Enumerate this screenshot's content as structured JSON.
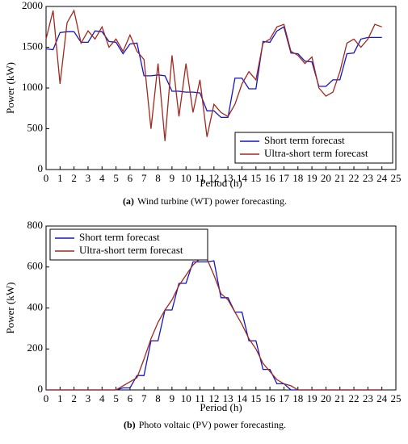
{
  "chart_data": [
    {
      "type": "line",
      "ylabel": "Power (kW)",
      "xlabel": "Period (h)",
      "caption_label": "(a)",
      "caption": "Wind turbine (WT) power forecasting.",
      "x": [
        0,
        0.5,
        1,
        1.5,
        2,
        2.5,
        3,
        3.5,
        4,
        4.5,
        5,
        5.5,
        6,
        6.5,
        7,
        7.5,
        8,
        8.5,
        9,
        9.5,
        10,
        10.5,
        11,
        11.5,
        12,
        12.5,
        13,
        13.5,
        14,
        14.5,
        15,
        15.5,
        16,
        16.5,
        17,
        17.5,
        18,
        18.5,
        19,
        19.5,
        20,
        20.5,
        21,
        21.5,
        22,
        22.5,
        23,
        23.5,
        24
      ],
      "series": [
        {
          "name": "Short term forecast",
          "color": "#1414c8",
          "values": [
            1480,
            1470,
            1680,
            1690,
            1690,
            1560,
            1560,
            1700,
            1690,
            1570,
            1560,
            1420,
            1540,
            1550,
            1150,
            1150,
            1160,
            1150,
            960,
            960,
            950,
            950,
            940,
            720,
            720,
            640,
            640,
            1120,
            1120,
            990,
            990,
            1570,
            1560,
            1700,
            1750,
            1430,
            1420,
            1330,
            1320,
            1020,
            1020,
            1100,
            1100,
            1420,
            1430,
            1600,
            1620,
            1620,
            1620
          ]
        },
        {
          "name": "Ultra-short term forecast",
          "color": "#a0281e",
          "values": [
            1600,
            1950,
            1050,
            1800,
            1950,
            1550,
            1700,
            1600,
            1750,
            1500,
            1600,
            1450,
            1650,
            1450,
            1350,
            500,
            1300,
            350,
            1400,
            650,
            1300,
            700,
            1100,
            400,
            800,
            700,
            650,
            800,
            1050,
            1200,
            1100,
            1550,
            1600,
            1750,
            1780,
            1450,
            1400,
            1300,
            1380,
            1000,
            900,
            950,
            1200,
            1550,
            1600,
            1500,
            1600,
            1780,
            1750
          ]
        }
      ],
      "xlim": [
        0,
        25
      ],
      "xticks": [
        0,
        1,
        2,
        3,
        4,
        5,
        6,
        7,
        8,
        9,
        10,
        11,
        12,
        13,
        14,
        15,
        16,
        17,
        18,
        19,
        20,
        21,
        22,
        23,
        24,
        25
      ],
      "ylim": [
        0,
        2000
      ],
      "yticks": [
        0,
        500,
        1000,
        1500,
        2000
      ],
      "legend": "lower right",
      "grid": false
    },
    {
      "type": "line",
      "ylabel": "Power (kW)",
      "xlabel": "Period (h)",
      "caption_label": "(b)",
      "caption": "Photo voltaic (PV) power forecasting.",
      "x": [
        0,
        0.5,
        1,
        1.5,
        2,
        2.5,
        3,
        3.5,
        4,
        4.5,
        5,
        5.5,
        6,
        6.5,
        7,
        7.5,
        8,
        8.5,
        9,
        9.5,
        10,
        10.5,
        11,
        11.5,
        12,
        12.5,
        13,
        13.5,
        14,
        14.5,
        15,
        15.5,
        16,
        16.5,
        17,
        17.5,
        18,
        18.5,
        19,
        19.5,
        20,
        20.5,
        21,
        21.5,
        22,
        22.5,
        23,
        23.5,
        24
      ],
      "series": [
        {
          "name": "Short term forecast",
          "color": "#1414c8",
          "values": [
            0,
            0,
            0,
            0,
            0,
            0,
            0,
            0,
            0,
            0,
            0,
            10,
            10,
            70,
            70,
            240,
            240,
            390,
            390,
            520,
            520,
            625,
            625,
            625,
            630,
            450,
            450,
            380,
            380,
            240,
            240,
            100,
            100,
            30,
            30,
            0,
            0,
            0,
            0,
            0,
            0,
            0,
            0,
            0,
            0,
            0,
            0,
            0,
            0
          ]
        },
        {
          "name": "Ultra-short term forecast",
          "color": "#a0281e",
          "values": [
            0,
            0,
            0,
            0,
            0,
            0,
            0,
            0,
            0,
            0,
            0,
            20,
            40,
            60,
            150,
            250,
            330,
            390,
            440,
            510,
            560,
            610,
            640,
            640,
            560,
            470,
            440,
            380,
            320,
            250,
            200,
            130,
            90,
            50,
            30,
            20,
            0,
            0,
            0,
            0,
            0,
            0,
            0,
            0,
            0,
            0,
            0,
            0,
            0
          ]
        }
      ],
      "xlim": [
        0,
        25
      ],
      "xticks": [
        0,
        1,
        2,
        3,
        4,
        5,
        6,
        7,
        8,
        9,
        10,
        11,
        12,
        13,
        14,
        15,
        16,
        17,
        18,
        19,
        20,
        21,
        22,
        23,
        24,
        25
      ],
      "ylim": [
        0,
        800
      ],
      "yticks": [
        0,
        200,
        400,
        600,
        800
      ],
      "legend": "upper left",
      "grid": false
    }
  ]
}
